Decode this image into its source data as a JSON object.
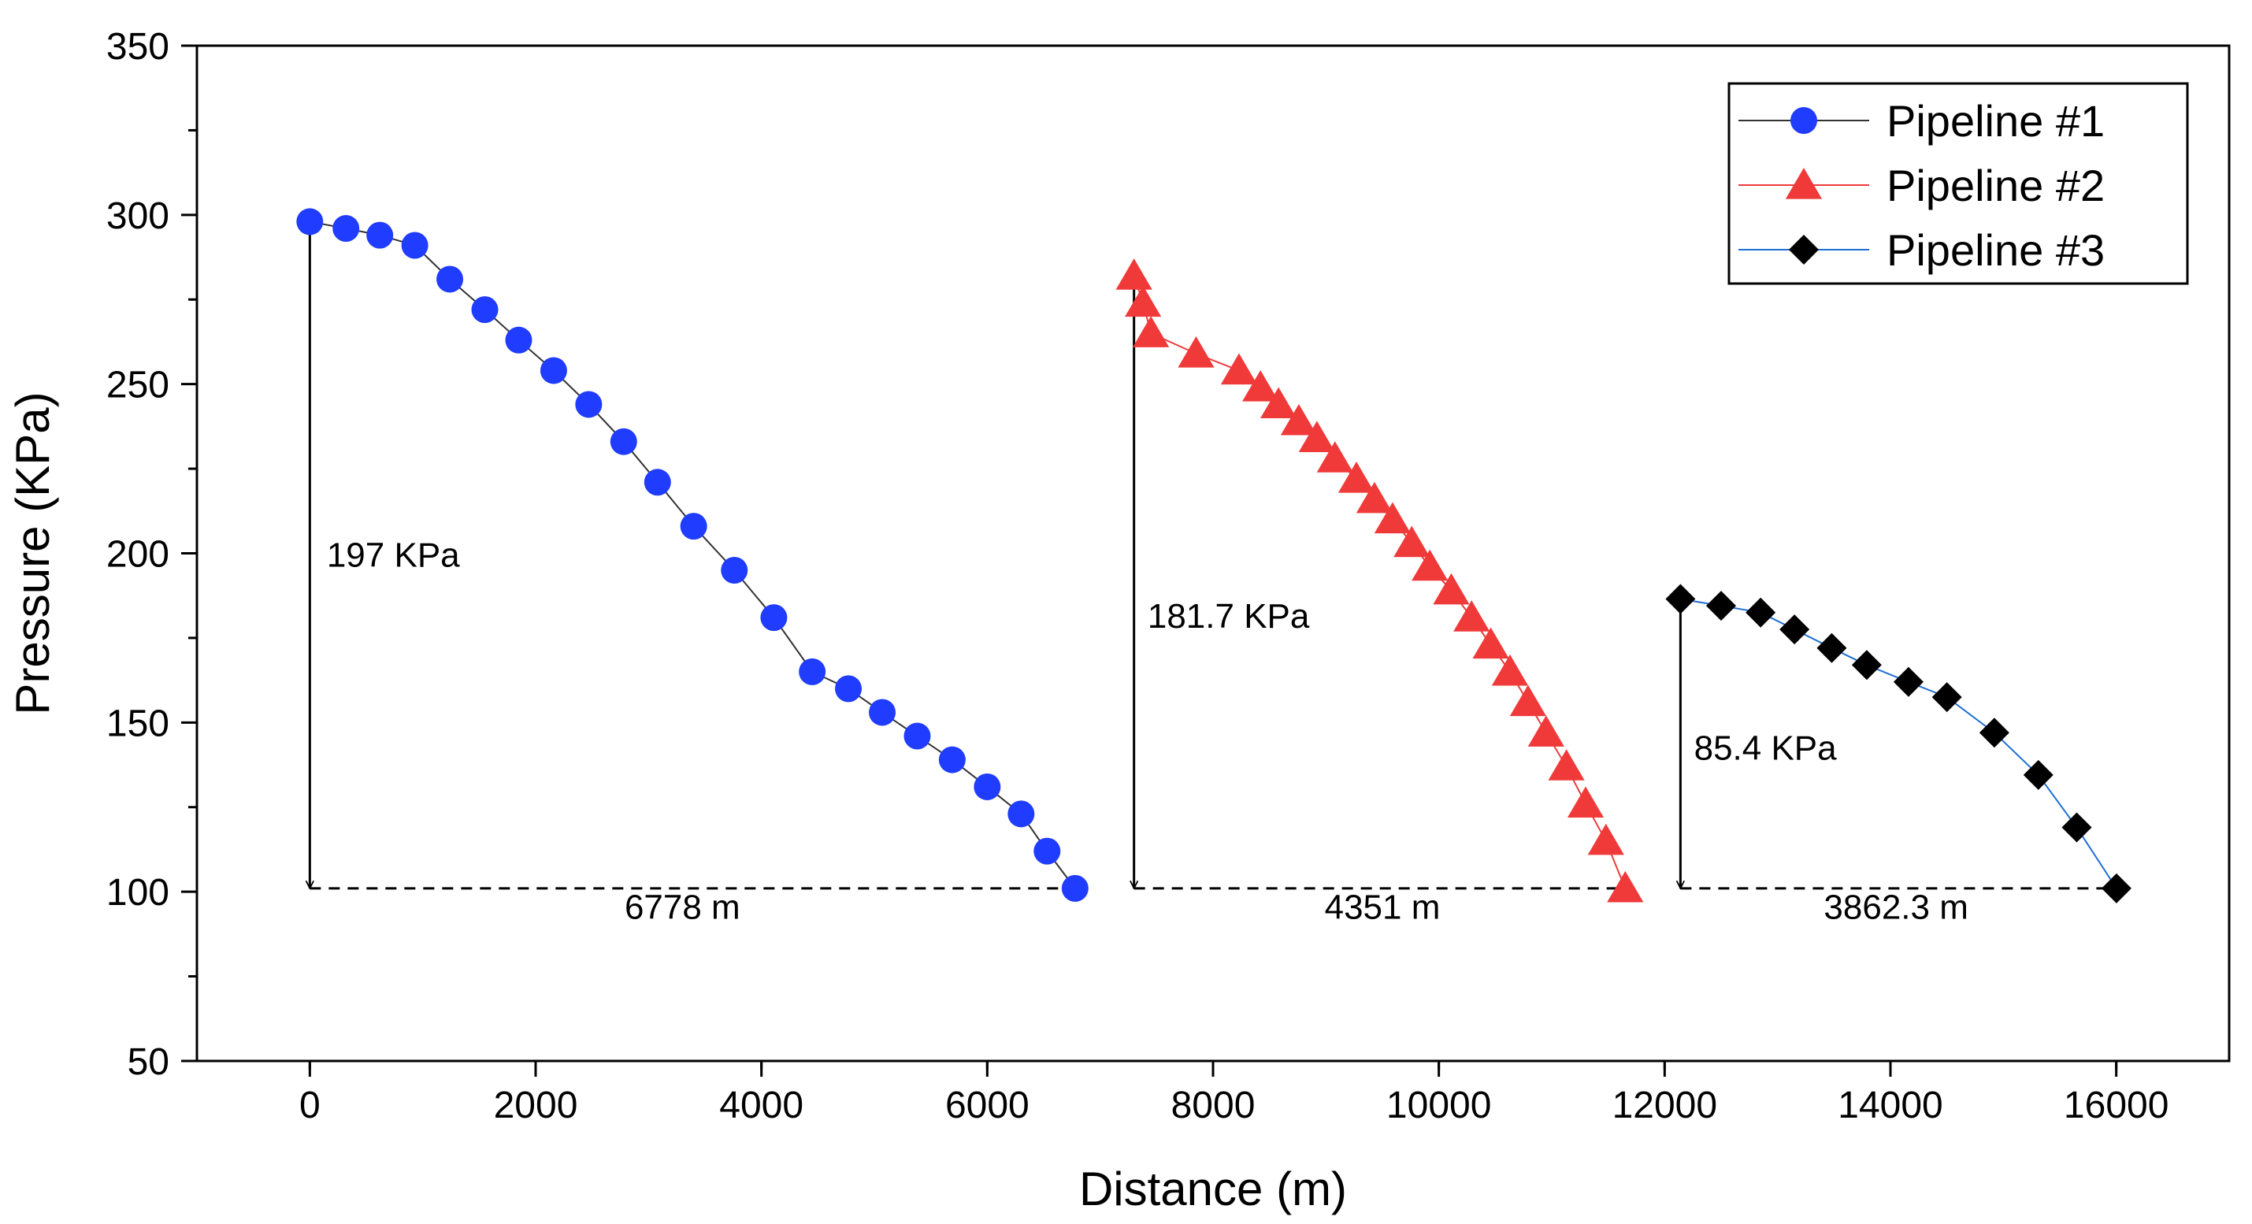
{
  "chart_data": {
    "type": "line",
    "xlabel": "Distance (m)",
    "ylabel": "Pressure (KPa)",
    "xlim": [
      -1000,
      17000
    ],
    "ylim": [
      50,
      350
    ],
    "x_ticks": [
      0,
      2000,
      4000,
      6000,
      8000,
      10000,
      12000,
      14000,
      16000
    ],
    "y_ticks": [
      50,
      100,
      150,
      200,
      250,
      300,
      350
    ],
    "x_tick_labels": [
      "0",
      "2000",
      "4000",
      "6000",
      "8000",
      "10000",
      "12000",
      "14000",
      "16000"
    ],
    "y_tick_labels": [
      "50",
      "100",
      "150",
      "200",
      "250",
      "300",
      "350"
    ],
    "legend_position": "top-right",
    "series": [
      {
        "name": "Pipeline #1",
        "marker": "circle",
        "marker_color": "#1f3cff",
        "line_color": "#333333",
        "x": [
          0,
          320,
          620,
          930,
          1240,
          1550,
          1850,
          2160,
          2470,
          2780,
          3080,
          3400,
          3760,
          4110,
          4450,
          4770,
          5070,
          5380,
          5690,
          6000,
          6300,
          6530,
          6778
        ],
        "y": [
          298,
          296,
          294,
          291,
          281,
          272,
          263,
          254,
          244,
          233,
          221,
          208,
          195,
          181,
          165,
          160,
          153,
          146,
          139,
          131,
          123,
          112,
          101
        ]
      },
      {
        "name": "Pipeline #2",
        "marker": "triangle",
        "marker_color": "#f03a3a",
        "line_color": "#f03a3a",
        "x": [
          7300,
          7380,
          7450,
          7850,
          8230,
          8420,
          8580,
          8760,
          8920,
          9080,
          9270,
          9430,
          9590,
          9760,
          9920,
          10110,
          10290,
          10460,
          10630,
          10790,
          10950,
          11130,
          11300,
          11480,
          11651
        ],
        "y": [
          282,
          274,
          265,
          259,
          254,
          249,
          244,
          239,
          234,
          228,
          222,
          216,
          210,
          203,
          196,
          189,
          181,
          173,
          165,
          156,
          147,
          137,
          126,
          115,
          101
        ]
      },
      {
        "name": "Pipeline #3",
        "marker": "diamond",
        "marker_color": "#000000",
        "line_color": "#1f6fd1",
        "x": [
          12140,
          12500,
          12850,
          13150,
          13480,
          13790,
          14160,
          14500,
          14920,
          15310,
          15650,
          16002
        ],
        "y": [
          186.5,
          184.5,
          182.5,
          177.5,
          172,
          167,
          162,
          157.5,
          147,
          134.5,
          119,
          101
        ]
      }
    ],
    "annotations": [
      {
        "label": "197 KPa",
        "type": "vertical-span",
        "x": 0,
        "y_from": 101,
        "y_to": 298,
        "text_x": 150,
        "text_y": 196
      },
      {
        "label": "6778 m",
        "type": "horizontal-span",
        "x_from": 0,
        "x_to": 6778,
        "y": 101,
        "text_x": 3300,
        "text_y": 92
      },
      {
        "label": "181.7 KPa",
        "type": "vertical-span",
        "x": 7300,
        "y_from": 101,
        "y_to": 282,
        "text_x": 7420,
        "text_y": 178
      },
      {
        "label": "4351 m",
        "type": "horizontal-span",
        "x_from": 7300,
        "x_to": 11651,
        "y": 101,
        "text_x": 9500,
        "text_y": 92
      },
      {
        "label": "85.4 KPa",
        "type": "vertical-span",
        "x": 12140,
        "y_from": 101,
        "y_to": 186.5,
        "text_x": 12260,
        "text_y": 139
      },
      {
        "label": "3862.3 m",
        "type": "horizontal-span",
        "x_from": 12140,
        "x_to": 16002,
        "y": 101,
        "text_x": 14050,
        "text_y": 92
      }
    ]
  }
}
